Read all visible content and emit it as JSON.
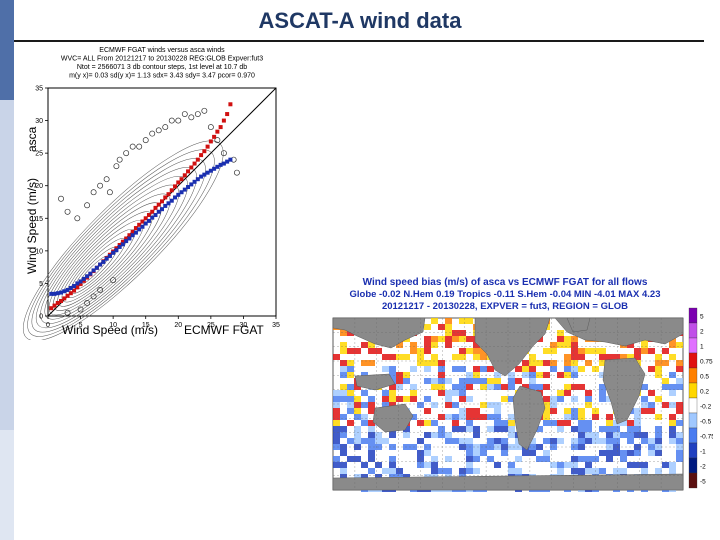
{
  "slide": {
    "title": "ASCAT-A wind data",
    "colors": {
      "title": "#1f3864",
      "sidebar_dark": "#4f6fa8",
      "sidebar_light": "#c9d4e8"
    }
  },
  "chart_data": [
    {
      "type": "scatter",
      "header_lines": [
        "ECMWF FGAT winds  versus asca winds",
        "WVC= ALL  From  20121217  to  20130228  REG:GLOB  Expver:fut3",
        "Ntot =  2566071  3 db contour steps, 1st level at  10.7 db",
        "m(y x)=  0.03 sd(y x)=  1.13 sdx=  3.43 sdy=  3.47 pcor=  0.970"
      ],
      "ylabel": "Wind Speed (m/s)",
      "ylabel_prefix": "asca",
      "xlabel": "Wind Speed (m/s)",
      "xlabel_suffix": "ECMWF FGAT",
      "xlim": [
        0,
        35
      ],
      "ylim": [
        0,
        35
      ],
      "xticks": [
        0,
        5,
        10,
        15,
        20,
        25,
        30,
        35
      ],
      "yticks": [
        0,
        5,
        10,
        15,
        20,
        25,
        30,
        35
      ],
      "series": [
        {
          "color": "#d01010",
          "x": [
            0.5,
            1,
            1.5,
            2,
            2.5,
            3,
            3.5,
            4,
            4.5,
            5,
            5.5,
            6,
            6.5,
            7,
            7.5,
            8,
            8.5,
            9,
            9.5,
            10,
            10.5,
            11,
            11.5,
            12,
            12.5,
            13,
            13.5,
            14,
            14.5,
            15,
            15.5,
            16,
            16.5,
            17,
            17.5,
            18,
            18.5,
            19,
            19.5,
            20,
            20.5,
            21,
            21.5,
            22,
            22.5,
            23,
            23.5,
            24,
            24.5,
            25,
            25.5,
            26,
            26.5,
            27,
            27.5,
            28
          ],
          "y": [
            1.2,
            1.6,
            2.0,
            2.3,
            2.7,
            3.1,
            3.5,
            3.9,
            4.4,
            4.9,
            5.4,
            5.9,
            6.4,
            6.9,
            7.4,
            7.9,
            8.4,
            8.9,
            9.4,
            9.9,
            10.4,
            10.9,
            11.4,
            11.9,
            12.4,
            12.9,
            13.5,
            14.0,
            14.5,
            15.0,
            15.5,
            16.0,
            16.6,
            17.1,
            17.6,
            18.2,
            18.7,
            19.3,
            19.9,
            20.5,
            21.0,
            21.6,
            22.2,
            22.8,
            23.4,
            24.0,
            24.7,
            25.3,
            26.0,
            26.8,
            27.5,
            28.3,
            29.0,
            30.0,
            31.0,
            32.5
          ]
        },
        {
          "color": "#1a2fb0",
          "x": [
            0.5,
            1,
            1.5,
            2,
            2.5,
            3,
            3.5,
            4,
            4.5,
            5,
            5.5,
            6,
            6.5,
            7,
            7.5,
            8,
            8.5,
            9,
            9.5,
            10,
            10.5,
            11,
            11.5,
            12,
            12.5,
            13,
            13.5,
            14,
            14.5,
            15,
            15.5,
            16,
            16.5,
            17,
            17.5,
            18,
            18.5,
            19,
            19.5,
            20,
            20.5,
            21,
            21.5,
            22,
            22.5,
            23,
            23.5,
            24,
            24.5,
            25,
            25.5,
            26,
            26.5,
            27,
            27.5,
            28
          ],
          "y": [
            3.4,
            3.4,
            3.5,
            3.6,
            3.8,
            4.0,
            4.3,
            4.6,
            5.0,
            5.3,
            5.7,
            6.1,
            6.5,
            7.0,
            7.4,
            7.9,
            8.3,
            8.8,
            9.2,
            9.7,
            10.1,
            10.6,
            11.0,
            11.5,
            11.9,
            12.4,
            12.8,
            13.3,
            13.7,
            14.2,
            14.6,
            15.1,
            15.5,
            16.0,
            16.4,
            16.9,
            17.3,
            17.7,
            18.2,
            18.6,
            19.0,
            19.4,
            19.8,
            20.2,
            20.6,
            21.0,
            21.4,
            21.7,
            22.0,
            22.3,
            22.6,
            22.9,
            23.2,
            23.4,
            23.7,
            24.0
          ]
        }
      ],
      "outliers": {
        "color": "#333333",
        "x": [
          2,
          3,
          4.5,
          6,
          7,
          8,
          9,
          9.5,
          10.5,
          11,
          12,
          13,
          14,
          15,
          16,
          17,
          18,
          19,
          20,
          21,
          22,
          23,
          24,
          25,
          26,
          27,
          28.5,
          29,
          3,
          5,
          6,
          7,
          8,
          10
        ],
        "y": [
          18,
          16,
          15,
          17,
          19,
          20,
          21,
          19,
          23,
          24,
          25,
          26,
          26,
          27,
          28,
          28.5,
          29,
          30,
          30,
          31,
          30.5,
          31,
          31.5,
          29,
          27,
          25,
          24,
          22,
          0.5,
          1,
          2,
          3,
          4,
          5.5
        ]
      },
      "grid": false
    },
    {
      "type": "heatmap",
      "title_lines": [
        "Wind speed bias (m/s) of asca vs ECMWF FGAT for all flows",
        "Globe -0.02  N.Hem 0.19  Tropics -0.11  S.Hem -0.04  MIN -4.01  MAX 4.23",
        "20121217 - 20130228, EXPVER = fut3, REGION = GLOB"
      ],
      "colorbar": {
        "levels": [
          "5",
          "2",
          "1",
          "0.75",
          "0.5",
          "0.2",
          "-0.2",
          "-0.5",
          "-0.75",
          "-1",
          "-2",
          "-5"
        ],
        "colors": [
          "#7b00b0",
          "#c050e8",
          "#e070ff",
          "#e01010",
          "#ff8000",
          "#ffd700",
          "#ffffff",
          "#a0c8ff",
          "#4a7cf0",
          "#2040c0",
          "#001a80",
          "#5a1010"
        ]
      },
      "land_color": "#8a8a8a"
    }
  ]
}
